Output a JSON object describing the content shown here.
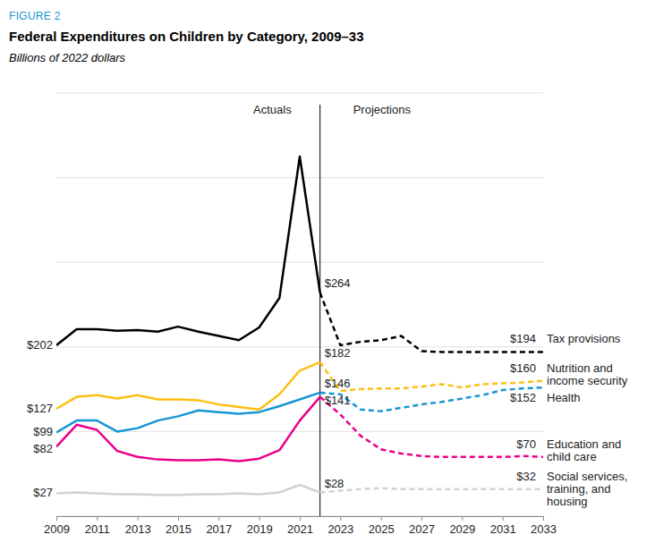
{
  "chart_data": {
    "type": "line",
    "figure_label": "FIGURE 2",
    "title": "Federal Expenditures on Children by Category, 2009–33",
    "subtitle": "Billions of 2022 dollars",
    "x": [
      2009,
      2010,
      2011,
      2012,
      2013,
      2014,
      2015,
      2016,
      2017,
      2018,
      2019,
      2020,
      2021,
      2022,
      2023,
      2024,
      2025,
      2026,
      2027,
      2028,
      2029,
      2030,
      2031,
      2032,
      2033
    ],
    "xlim": [
      2009,
      2033
    ],
    "xticks": [
      2009,
      2011,
      2013,
      2015,
      2017,
      2019,
      2021,
      2023,
      2025,
      2027,
      2029,
      2031,
      2033
    ],
    "ylim": [
      0,
      500
    ],
    "yticks": [
      0,
      100,
      200,
      300,
      400,
      500
    ],
    "grid": true,
    "tick_labels": "x",
    "annotations": [
      {
        "x": 2022,
        "text_left": "Actuals",
        "text_right": "Projections"
      }
    ],
    "series": [
      {
        "name": "Tax provisions",
        "color": "#000000",
        "values": [
          202,
          221,
          221,
          219,
          220,
          218,
          224,
          218,
          213,
          208,
          223,
          258,
          425,
          264,
          202,
          206,
          208,
          213,
          195,
          194,
          194,
          194,
          194,
          194,
          194
        ],
        "value_labels": [
          "$202",
          null,
          null,
          null,
          null,
          null,
          null,
          null,
          null,
          null,
          null,
          null,
          null,
          "$264",
          null,
          null,
          null,
          null,
          null,
          null,
          null,
          null,
          null,
          null,
          "$194"
        ]
      },
      {
        "name": "Nutrition and income security",
        "color": "#fdbf11",
        "values": [
          127,
          141,
          143,
          139,
          143,
          138,
          138,
          137,
          132,
          129,
          126,
          144,
          172,
          182,
          148,
          150,
          151,
          151,
          153,
          156,
          152,
          156,
          157,
          158,
          160
        ],
        "value_labels": [
          "$127",
          null,
          null,
          null,
          null,
          null,
          null,
          null,
          null,
          null,
          null,
          null,
          null,
          "$182",
          null,
          null,
          null,
          null,
          null,
          null,
          null,
          null,
          null,
          null,
          "$160"
        ]
      },
      {
        "name": "Health",
        "color": "#1696d2",
        "values": [
          99,
          113,
          113,
          100,
          104,
          113,
          118,
          125,
          123,
          121,
          123,
          130,
          138,
          146,
          144,
          126,
          124,
          128,
          132,
          135,
          139,
          143,
          149,
          151,
          152
        ],
        "value_labels": [
          "$99",
          null,
          null,
          null,
          null,
          null,
          null,
          null,
          null,
          null,
          null,
          null,
          null,
          "$146",
          null,
          null,
          null,
          null,
          null,
          null,
          null,
          null,
          null,
          null,
          "$152"
        ]
      },
      {
        "name": "Education and child care",
        "color": "#ec008b",
        "values": [
          82,
          108,
          102,
          77,
          70,
          67,
          66,
          66,
          67,
          65,
          68,
          78,
          113,
          141,
          120,
          95,
          79,
          74,
          71,
          70,
          70,
          70,
          70,
          71,
          70
        ],
        "value_labels": [
          "$82",
          null,
          null,
          null,
          null,
          null,
          null,
          null,
          null,
          null,
          null,
          null,
          null,
          "$141",
          null,
          null,
          null,
          null,
          null,
          null,
          null,
          null,
          null,
          null,
          "$70"
        ]
      },
      {
        "name": "Social services, training, and housing",
        "color": "#d2d2d2",
        "values": [
          27,
          28,
          27,
          26,
          26,
          25,
          25,
          26,
          26,
          27,
          26,
          28,
          37,
          28,
          30,
          32,
          33,
          32,
          32,
          32,
          32,
          32,
          32,
          32,
          32
        ],
        "value_labels": [
          "$27",
          null,
          null,
          null,
          null,
          null,
          null,
          null,
          null,
          null,
          null,
          null,
          null,
          "$28",
          null,
          null,
          null,
          null,
          null,
          null,
          null,
          null,
          null,
          null,
          "$32"
        ]
      }
    ]
  }
}
